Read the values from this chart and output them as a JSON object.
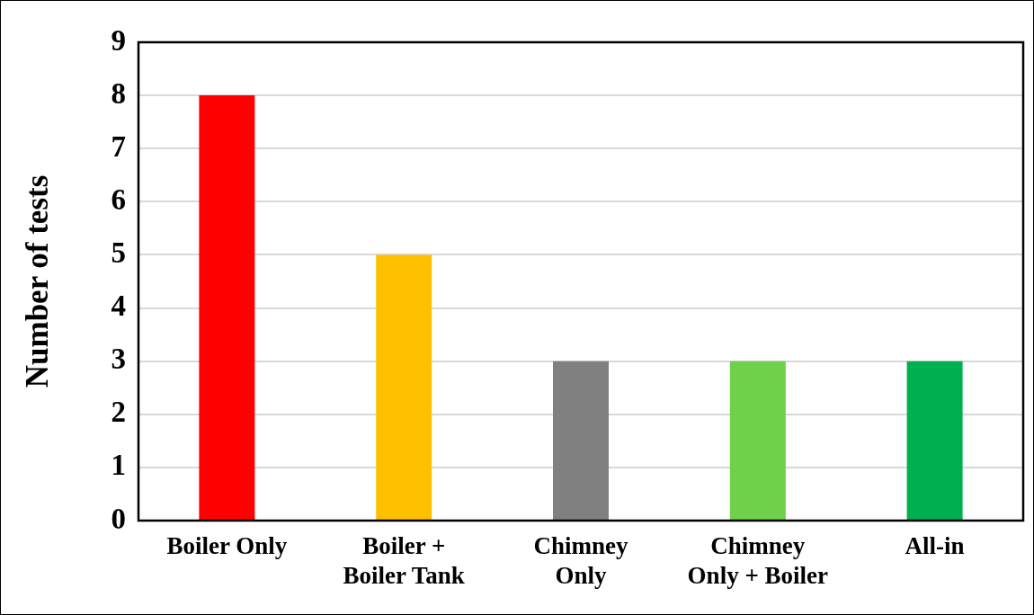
{
  "chart_data": {
    "type": "bar",
    "ylabel": "Number of tests",
    "categories": [
      "Boiler Only",
      "Boiler + Boiler Tank",
      "Chimney Only",
      "Chimney Only + Boiler",
      "All-in"
    ],
    "values": [
      8,
      5,
      3,
      3,
      3
    ],
    "colors": [
      "#ff0000",
      "#ffc000",
      "#808080",
      "#6fd04a",
      "#00b050"
    ],
    "ylim": [
      0,
      9
    ],
    "yticks": [
      0,
      1,
      2,
      3,
      4,
      5,
      6,
      7,
      8,
      9
    ],
    "grid": "y",
    "legend": false
  }
}
